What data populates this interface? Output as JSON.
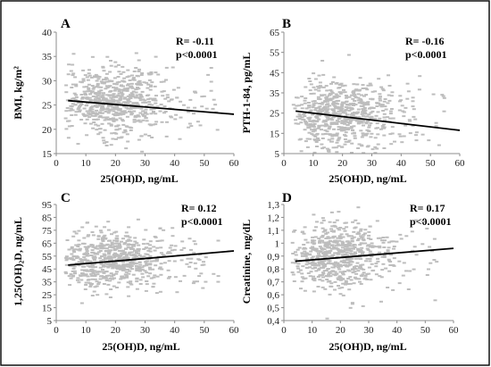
{
  "chart_data": [
    {
      "type": "scatter",
      "panel": "A",
      "xlabel": "25(OH)D, ng/mL",
      "ylabel": "BMI, kg/m²",
      "xlim": [
        0,
        60
      ],
      "ylim": [
        15,
        40
      ],
      "xticks": [
        0,
        10,
        20,
        30,
        40,
        50,
        60
      ],
      "yticks": [
        15,
        20,
        25,
        30,
        35,
        40
      ],
      "r_label": "R= -0.11",
      "p_label": "p<0.0001",
      "trend": {
        "x": [
          4,
          60
        ],
        "y": [
          25.9,
          23.1
        ]
      },
      "cloud": {
        "x_center": 19,
        "x_spread": 9,
        "y_center": 25.5,
        "y_spread": 3.6,
        "count": 700
      }
    },
    {
      "type": "scatter",
      "panel": "B",
      "xlabel": "25(OH)D, ng/mL",
      "ylabel": "PTH-1-84, pg/mL",
      "xlim": [
        0,
        60
      ],
      "ylim": [
        5,
        65
      ],
      "xticks": [
        0,
        10,
        20,
        30,
        40,
        50,
        60
      ],
      "yticks": [
        5,
        15,
        25,
        35,
        45,
        55,
        65
      ],
      "r_label": "R= -0.16",
      "p_label": "p<0.0001",
      "trend": {
        "x": [
          4,
          60
        ],
        "y": [
          26,
          16.5
        ]
      },
      "cloud": {
        "x_center": 19,
        "x_spread": 9,
        "y_center": 24,
        "y_spread": 8.5,
        "count": 700
      }
    },
    {
      "type": "scatter",
      "panel": "C",
      "xlabel": "25(OH)D, ng/mL",
      "ylabel": "1,25(OH)₂D, ng/mL",
      "xlim": [
        0,
        60
      ],
      "ylim": [
        5,
        95
      ],
      "xticks": [
        0,
        10,
        20,
        30,
        40,
        50,
        60
      ],
      "yticks": [
        5,
        15,
        25,
        35,
        45,
        55,
        65,
        75,
        85,
        95
      ],
      "r_label": "R= 0.12",
      "p_label": "p<0.0001",
      "trend": {
        "x": [
          4,
          60
        ],
        "y": [
          48,
          59
        ]
      },
      "cloud": {
        "x_center": 19,
        "x_spread": 9,
        "y_center": 52,
        "y_spread": 11,
        "count": 700
      }
    },
    {
      "type": "scatter",
      "panel": "D",
      "xlabel": "25(OH)D, ng/mL",
      "ylabel": "Creatinine, mg/dL",
      "xlim": [
        0,
        60
      ],
      "ylim": [
        0.4,
        1.3
      ],
      "xticks": [
        0,
        10,
        20,
        30,
        40,
        50,
        60
      ],
      "yticks": [
        0.4,
        0.5,
        0.6,
        0.7,
        0.8,
        0.9,
        1.0,
        1.1,
        1.2,
        1.3
      ],
      "ytick_labels": [
        "0,4",
        "0,5",
        "0,6",
        "0,7",
        "0,8",
        "0,9",
        "1",
        "1,1",
        "1,2",
        "1,3"
      ],
      "r_label": "R= 0.17",
      "p_label": "p<0.0001",
      "trend": {
        "x": [
          4,
          60
        ],
        "y": [
          0.86,
          0.96
        ]
      },
      "cloud": {
        "x_center": 19,
        "x_spread": 9,
        "y_center": 0.9,
        "y_spread": 0.13,
        "count": 700
      }
    }
  ]
}
